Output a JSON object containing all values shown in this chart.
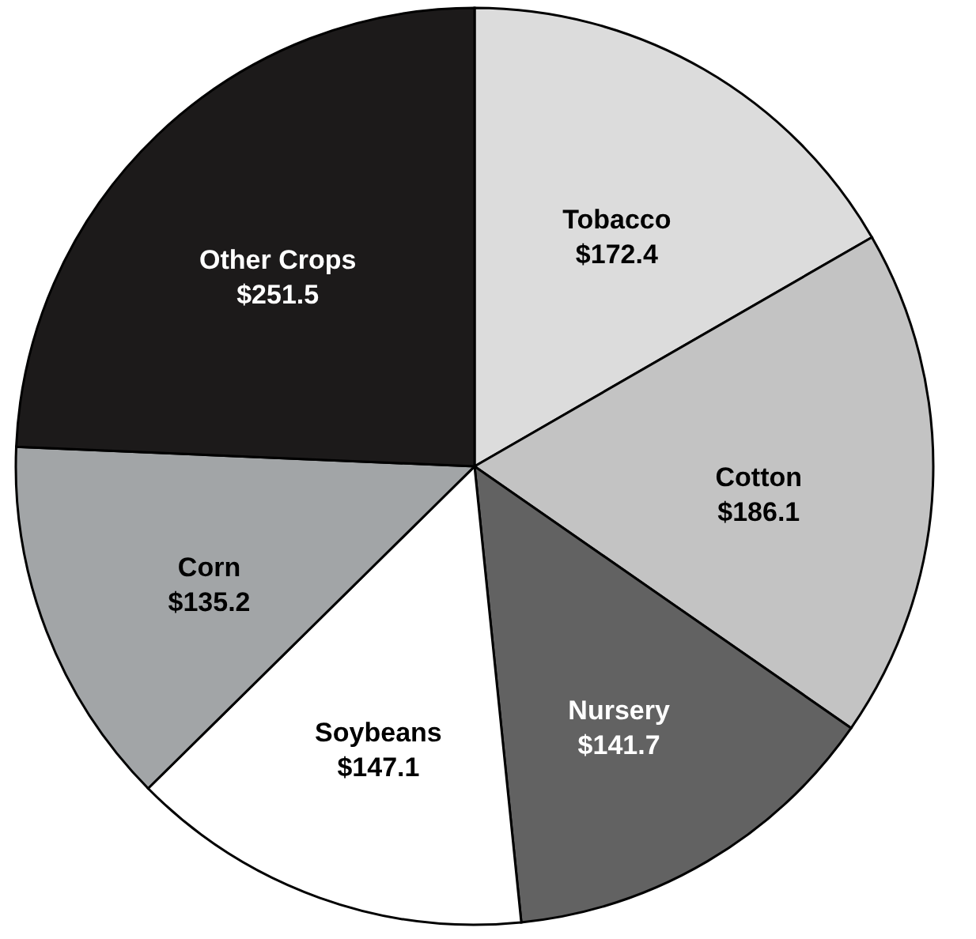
{
  "chart_data": {
    "type": "pie",
    "categories": [
      "Tobacco",
      "Cotton",
      "Nursery",
      "Soybeans",
      "Corn",
      "Other Crops"
    ],
    "values": [
      172.4,
      186.1,
      141.7,
      147.1,
      135.2,
      251.5
    ],
    "value_labels": [
      "$172.4",
      "$186.1",
      "$141.7",
      "$147.1",
      "$135.2",
      "$251.5"
    ],
    "colors": [
      "#dcdcdc",
      "#c3c3c3",
      "#626262",
      "#ffffff",
      "#a2a5a7",
      "#1c1a1a"
    ],
    "legend": false
  }
}
